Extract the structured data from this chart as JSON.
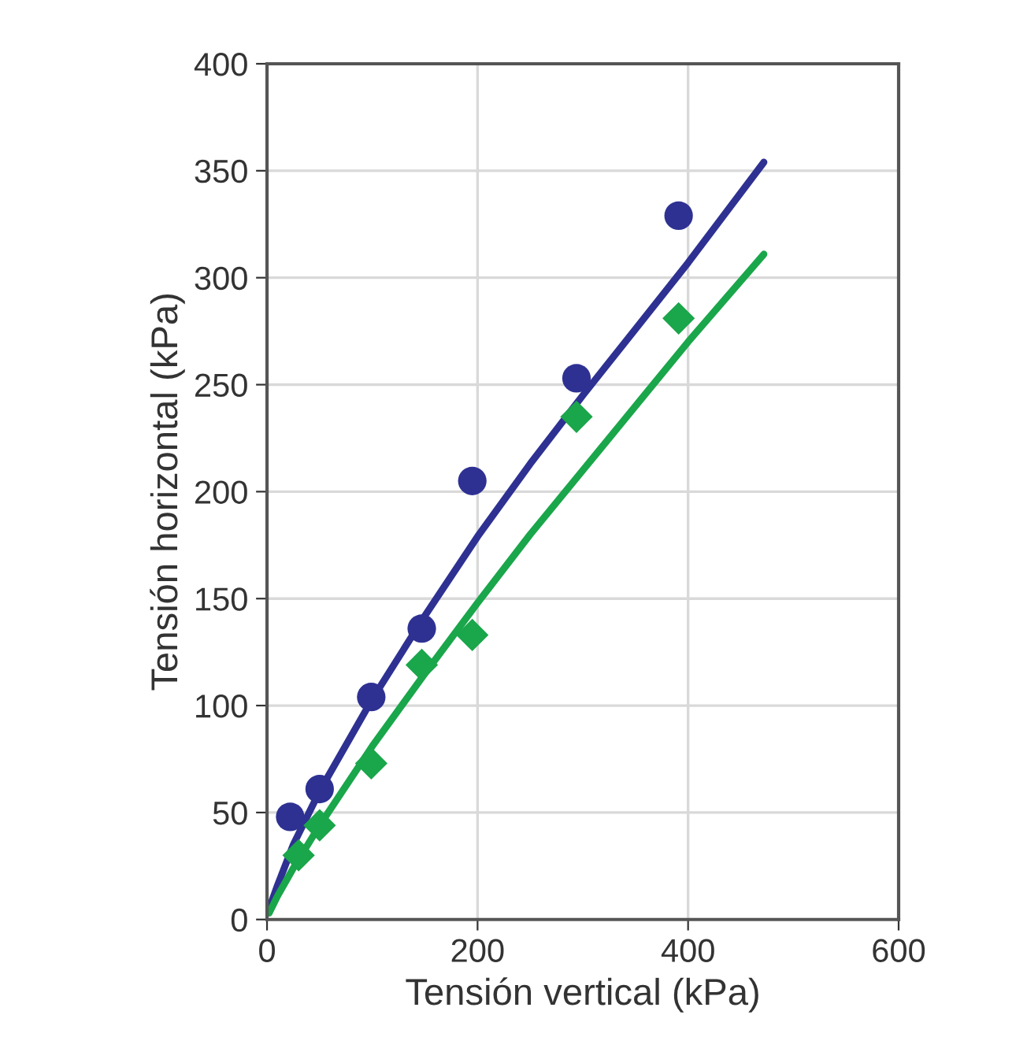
{
  "chart_data": {
    "type": "scatter",
    "xlabel": "Tensión vertical (kPa)",
    "ylabel": "Tensión horizontal (kPa)",
    "xlim": [
      0,
      600
    ],
    "xticks": [
      0,
      200,
      400,
      600
    ],
    "ylim": [
      0,
      400
    ],
    "yticks": [
      0,
      50,
      100,
      150,
      200,
      250,
      300,
      350,
      400
    ],
    "grid": true,
    "series": [
      {
        "marker": "circle",
        "color": "#2e3192",
        "x": [
          22,
          50,
          99,
          147,
          195,
          294,
          391
        ],
        "values": [
          48,
          61,
          104,
          136,
          205,
          253,
          329
        ]
      },
      {
        "marker": "diamond",
        "color": "#1aa64a",
        "x": [
          30,
          50,
          99,
          147,
          195,
          294,
          391
        ],
        "values": [
          30,
          44,
          73,
          119,
          133,
          235,
          281
        ]
      },
      {
        "type": "line",
        "marker": "none",
        "color": "#2e3192",
        "x": [
          2,
          10,
          25,
          50,
          100,
          150,
          200,
          250,
          300,
          350,
          400,
          472
        ],
        "values": [
          5,
          16,
          35,
          60,
          103,
          142,
          179,
          213,
          245,
          276,
          307,
          354
        ]
      },
      {
        "type": "line",
        "marker": "none",
        "color": "#1aa64a",
        "x": [
          2,
          10,
          25,
          50,
          100,
          150,
          200,
          250,
          300,
          350,
          400,
          472
        ],
        "values": [
          3,
          11,
          24,
          44,
          81,
          115,
          148,
          180,
          210,
          240,
          270,
          311
        ]
      }
    ]
  }
}
